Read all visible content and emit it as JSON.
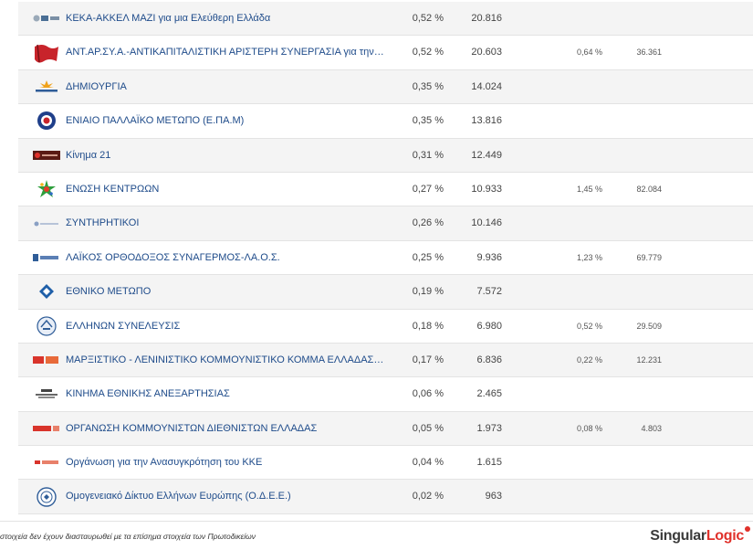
{
  "rows": [
    {
      "name": "ΚΕΚΑ-ΑΚΚΕΛ ΜΑΖΙ για μια Ελεύθερη Ελλάδα",
      "pct": "0,52 %",
      "votes": "20.816",
      "prev_pct": "",
      "prev_votes": "",
      "logo_icon": "keka-akkel-logo-icon"
    },
    {
      "name": "ΑΝΤ.ΑΡ.ΣΥ.Α.-ΑΝΤΙΚΑΠΙΤΑΛΙΣΤΙΚΗ ΑΡΙΣΤΕΡΗ ΣΥΝΕΡΓΑΣΙΑ για την ΑΝΑΤΡΟΠΗ",
      "pct": "0,52 %",
      "votes": "20.603",
      "prev_pct": "0,64 %",
      "prev_votes": "36.361",
      "logo_icon": "antarsya-flag-icon"
    },
    {
      "name": "ΔΗΜΙΟΥΡΓΙΑ",
      "pct": "0,35 %",
      "votes": "14.024",
      "prev_pct": "",
      "prev_votes": "",
      "logo_icon": "dimiourgia-logo-icon"
    },
    {
      "name": "ΕΝΙΑΙΟ ΠΑΛΛΑΪΚΟ ΜΕΤΩΠΟ (Ε.ΠΑ.Μ)",
      "pct": "0,35 %",
      "votes": "13.816",
      "prev_pct": "",
      "prev_votes": "",
      "logo_icon": "epam-round-logo-icon"
    },
    {
      "name": "Κίνημα 21",
      "pct": "0,31 %",
      "votes": "12.449",
      "prev_pct": "",
      "prev_votes": "",
      "logo_icon": "kinima21-logo-icon"
    },
    {
      "name": "ΕΝΩΣΗ ΚΕΝΤΡΩΩΝ",
      "pct": "0,27 %",
      "votes": "10.933",
      "prev_pct": "1,45 %",
      "prev_votes": "82.084",
      "logo_icon": "enosi-kentroon-star-icon"
    },
    {
      "name": "ΣΥΝΤΗΡΗΤΙΚΟΙ",
      "pct": "0,26 %",
      "votes": "10.146",
      "prev_pct": "",
      "prev_votes": "",
      "logo_icon": "syntiritikoi-logo-icon"
    },
    {
      "name": "ΛΑΪΚΟΣ ΟΡΘΟΔΟΞΟΣ ΣΥΝΑΓΕΡΜΟΣ-ΛΑ.Ο.Σ.",
      "pct": "0,25 %",
      "votes": "9.936",
      "prev_pct": "1,23 %",
      "prev_votes": "69.779",
      "logo_icon": "laos-logo-icon"
    },
    {
      "name": "ΕΘΝΙΚΟ ΜΕΤΩΠΟ",
      "pct": "0,19 %",
      "votes": "7.572",
      "prev_pct": "",
      "prev_votes": "",
      "logo_icon": "ethniko-metopo-diamond-icon"
    },
    {
      "name": "ΕΛΛΗΝΩΝ ΣΥΝΕΛΕΥΣΙΣ",
      "pct": "0,18 %",
      "votes": "6.980",
      "prev_pct": "0,52 %",
      "prev_votes": "29.509",
      "logo_icon": "ellinon-syneleusis-round-icon"
    },
    {
      "name": "ΜΑΡΞΙΣΤΙΚΟ - ΛΕΝΙΝΙΣΤΙΚΟ ΚΟΜΜΟΥΝΙΣΤΙΚΟ ΚΟΜΜΑ ΕΛΛΑΔΑΣ (Μ-Λ ΚΚΕ)",
      "pct": "0,17 %",
      "votes": "6.836",
      "prev_pct": "0,22 %",
      "prev_votes": "12.231",
      "logo_icon": "ml-kke-logo-icon"
    },
    {
      "name": "ΚΙΝΗΜΑ ΕΘΝΙΚΗΣ ΑΝΕΞΑΡΤΗΣΙΑΣ",
      "pct": "0,06 %",
      "votes": "2.465",
      "prev_pct": "",
      "prev_votes": "",
      "logo_icon": "kinima-ethnikis-logo-icon"
    },
    {
      "name": "ΟΡΓΑΝΩΣΗ ΚΟΜΜΟΥΝΙΣΤΩΝ ΔΙΕΘΝΙΣΤΩΝ ΕΛΛΑΔΑΣ",
      "pct": "0,05 %",
      "votes": "1.973",
      "prev_pct": "0,08 %",
      "prev_votes": "4.803",
      "logo_icon": "okde-logo-icon"
    },
    {
      "name": "Οργάνωση για την Ανασυγκρότηση του ΚΚΕ",
      "pct": "0,04 %",
      "votes": "1.615",
      "prev_pct": "",
      "prev_votes": "",
      "logo_icon": "oakke-logo-icon"
    },
    {
      "name": "Ομογενειακό Δίκτυο Ελλήνων Ευρώπης (Ο.Δ.Ε.Ε.)",
      "pct": "0,02 %",
      "votes": "963",
      "prev_pct": "",
      "prev_votes": "",
      "logo_icon": "odee-seal-icon"
    }
  ],
  "footer": {
    "note": "στοιχεία δεν έχουν διασταυρωθεί με τα επίσημα στοιχεία των Πρωτοδικείων",
    "brand_singular": "Singular",
    "brand_logic": "Logic"
  },
  "colors": {
    "link": "#1e4b8a",
    "row_alt": "#f4f4f4",
    "brand_red": "#e0312b"
  }
}
